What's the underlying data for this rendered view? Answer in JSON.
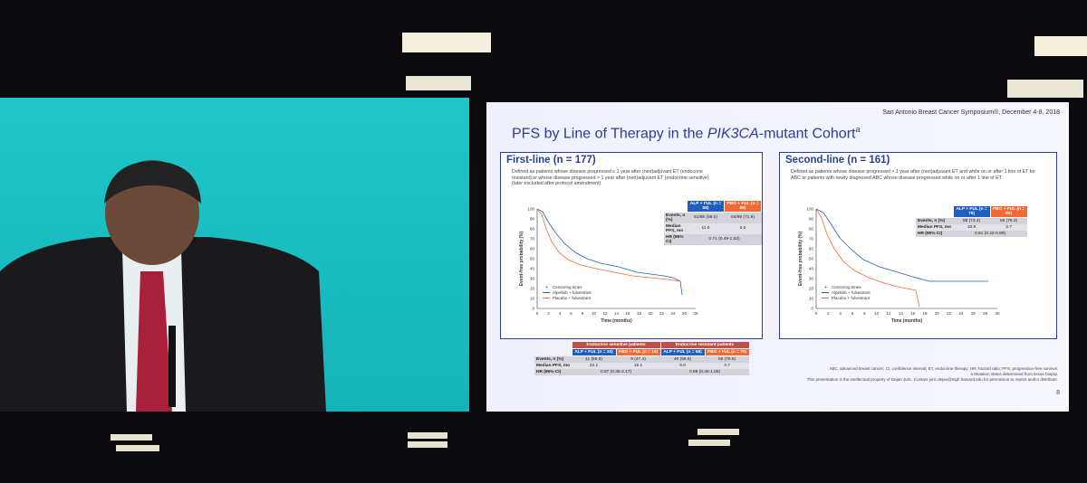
{
  "slide": {
    "header": "San Antonio Breast Cancer Symposium®, December 4-8, 2018",
    "title": "PFS by Line of Therapy in the ",
    "title_italic": "PIK3CA",
    "title_end": "-mutant Cohort",
    "title_sup": "a",
    "panels": [
      {
        "heading": "First-line (n = 177)",
        "definition": "Defined as patients whose disease progressed ≤ 1 year after (neo)adjuvant ET (endocrine resistant) or whose disease progressed > 1 year after (neo)adjuvant ET (endocrine sensitive) (later excluded after protocol amendment)",
        "y_label": "Event-free probability (%)",
        "x_label": "Time (months)",
        "y_ticks": [
          "0",
          "10",
          "20",
          "30",
          "40",
          "50",
          "60",
          "70",
          "80",
          "90",
          "100"
        ],
        "x_ticks": [
          "0",
          "2",
          "4",
          "6",
          "8",
          "10",
          "12",
          "14",
          "16",
          "18",
          "20",
          "22",
          "24",
          "26",
          "28"
        ],
        "legend": [
          "Censoring times",
          "Alpelisib + fulvestrant",
          "Placebo + fulvestrant"
        ],
        "table": {
          "columns": [
            "ALP + FUL (n = 88)",
            "PBO + FUL (n = 89)"
          ],
          "rows": [
            [
              "Events, n (%)",
              "51/88 (58.0)",
              "64/89 (71.9)"
            ],
            [
              "Median PFS, mo",
              "11.0",
              "5.6"
            ],
            [
              "HR (95% CI)",
              "0.71 (0.49-1.03)"
            ]
          ]
        }
      },
      {
        "heading": "Second-line (n = 161)",
        "definition": "Defined as patients whose disease progressed > 1 year after (neo)adjuvant ET and while on or after 1 line of ET for ABC or patients with newly diagnosed ABC whose disease progressed while on or after 1 line of ET",
        "y_label": "Event-free probability (%)",
        "x_label": "Time (months)",
        "y_ticks": [
          "0",
          "10",
          "20",
          "30",
          "40",
          "50",
          "60",
          "70",
          "80",
          "90",
          "100"
        ],
        "x_ticks": [
          "0",
          "2",
          "4",
          "6",
          "8",
          "10",
          "12",
          "14",
          "16",
          "18",
          "20",
          "22",
          "24",
          "26",
          "28",
          "30"
        ],
        "legend": [
          "Censoring times",
          "Alpelisib + fulvestrant",
          "Placebo + fulvestrant"
        ],
        "table": {
          "columns": [
            "ALP + FUL (n = 79)",
            "PBO + FUL (n = 82)"
          ],
          "rows": [
            [
              "Events, n (%)",
              "58 (73.4)",
              "65 (79.3)"
            ],
            [
              "Median PFS, mo",
              "10.9",
              "3.7"
            ],
            [
              "HR (95% CI)",
              "0.61 (0.42-0.89)"
            ]
          ]
        }
      }
    ],
    "subgroup_table": {
      "groups": [
        "Endocrine sensitive patients",
        "Endocrine resistant patients"
      ],
      "columns": [
        "ALP + FUL (n = 20)",
        "PBO + FUL (n = 19)",
        "ALP + FUL (n = 68)",
        "PBO + FUL (n = 70)"
      ],
      "rows": [
        [
          "Events, n (%)",
          "11 (55.0)",
          "9 (47.4)",
          "40 (58.8)",
          "55 (78.6)"
        ],
        [
          "Median PFS, mo",
          "22.1",
          "19.1",
          "9.0",
          "4.7"
        ],
        [
          "HR (95% CI)",
          "0.87 (0.35-2.17)",
          "0.69 (0.46-1.05)"
        ]
      ]
    },
    "footnotes": [
      "ABC, advanced breast cancer; CI, confidence interval; ET, endocrine therapy; HR, hazard ratio; PFS, progression-free survival.",
      "a Mutation status determined from tissue biopsy.",
      "This presentation is the intellectual property of Dejan Juric. Contact juric.dejan@mgh.harvard.edu for permission to reprint and/or distribute."
    ],
    "page": "8"
  }
}
